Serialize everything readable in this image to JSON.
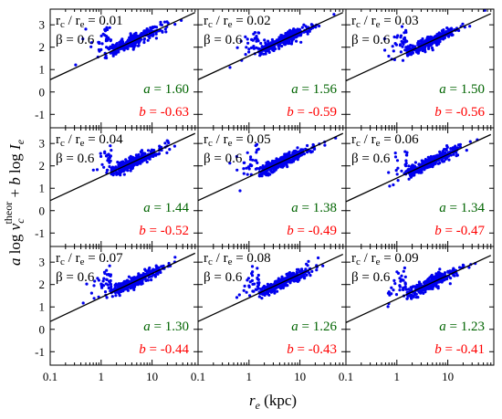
{
  "figure": {
    "ylabel_parts": {
      "a": "a",
      "log1": " log ",
      "v": "v",
      "v_sub": "c",
      "v_sup": "theor",
      "plus": " + ",
      "b": "b",
      "log2": " log ",
      "I": "I",
      "I_sub": "e"
    },
    "xlabel_parts": {
      "r": "r",
      "r_sub": "e",
      "unit": " (kpc)"
    },
    "panel_label_parts": {
      "rc": "r",
      "rc_sub": "c",
      "slash": " / ",
      "re": "r",
      "re_sub": "e",
      "eq": " = "
    },
    "beta_label": "β = 0.6",
    "coef_prefix_a": "a",
    "coef_prefix_b": "b",
    "coef_eq": " = ",
    "colors": {
      "points": "#0000ee",
      "fit_line": "#000000",
      "a_coef": "#006400",
      "b_coef": "#ff0000",
      "frame": "#000000"
    }
  },
  "chart_data": [
    {
      "type": "scatter",
      "row": 0,
      "col": 0,
      "ratio": "0.01",
      "beta": "0.6",
      "a": "1.60",
      "b": "-0.63",
      "fit": {
        "x": [
          0.1,
          70
        ],
        "y": [
          0.55,
          3.55
        ]
      }
    },
    {
      "type": "scatter",
      "row": 0,
      "col": 1,
      "ratio": "0.02",
      "beta": "0.6",
      "a": "1.56",
      "b": "-0.59",
      "fit": {
        "x": [
          0.1,
          70
        ],
        "y": [
          0.55,
          3.55
        ]
      }
    },
    {
      "type": "scatter",
      "row": 0,
      "col": 2,
      "ratio": "0.03",
      "beta": "0.6",
      "a": "1.50",
      "b": "-0.56",
      "fit": {
        "x": [
          0.1,
          70
        ],
        "y": [
          0.5,
          3.5
        ]
      }
    },
    {
      "type": "scatter",
      "row": 1,
      "col": 0,
      "ratio": "0.04",
      "beta": "0.6",
      "a": "1.44",
      "b": "-0.52",
      "fit": {
        "x": [
          0.1,
          70
        ],
        "y": [
          0.45,
          3.45
        ]
      }
    },
    {
      "type": "scatter",
      "row": 1,
      "col": 1,
      "ratio": "0.05",
      "beta": "0.6",
      "a": "1.38",
      "b": "-0.49",
      "fit": {
        "x": [
          0.1,
          70
        ],
        "y": [
          0.45,
          3.45
        ]
      }
    },
    {
      "type": "scatter",
      "row": 1,
      "col": 2,
      "ratio": "0.06",
      "beta": "0.6",
      "a": "1.34",
      "b": "-0.47",
      "fit": {
        "x": [
          0.1,
          70
        ],
        "y": [
          0.4,
          3.4
        ]
      }
    },
    {
      "type": "scatter",
      "row": 2,
      "col": 0,
      "ratio": "0.07",
      "beta": "0.6",
      "a": "1.30",
      "b": "-0.44",
      "fit": {
        "x": [
          0.1,
          70
        ],
        "y": [
          0.35,
          3.4
        ]
      }
    },
    {
      "type": "scatter",
      "row": 2,
      "col": 1,
      "ratio": "0.08",
      "beta": "0.6",
      "a": "1.26",
      "b": "-0.43",
      "fit": {
        "x": [
          0.1,
          70
        ],
        "y": [
          0.35,
          3.35
        ]
      }
    },
    {
      "type": "scatter",
      "row": 2,
      "col": 2,
      "ratio": "0.09",
      "beta": "0.6",
      "a": "1.23",
      "b": "-0.41",
      "fit": {
        "x": [
          0.1,
          70
        ],
        "y": [
          0.3,
          3.3
        ]
      }
    }
  ],
  "axes": {
    "x": {
      "scale": "log",
      "range": [
        0.1,
        80
      ],
      "ticks": [
        0.1,
        1,
        10
      ],
      "tick_labels": [
        "0.1",
        "1",
        "10"
      ]
    },
    "y": {
      "scale": "linear",
      "range": [
        -1.6,
        3.7
      ],
      "ticks": [
        -1,
        0,
        1,
        2,
        3
      ],
      "tick_labels": [
        "-1",
        "0",
        "1",
        "2",
        "3"
      ]
    },
    "grid": false,
    "shared_axes": true
  }
}
